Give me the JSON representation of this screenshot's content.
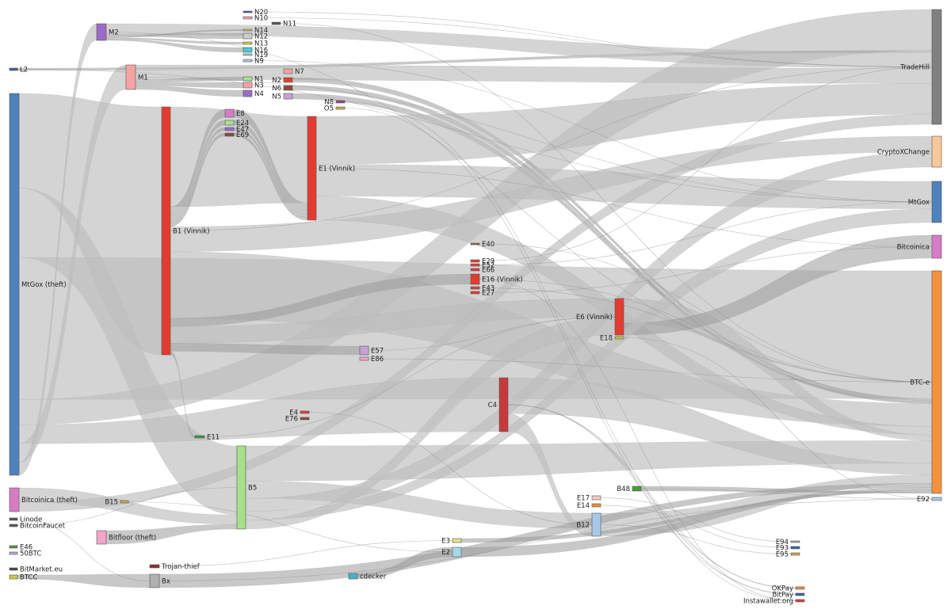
{
  "diagram": {
    "type": "sankey",
    "nodes": [
      {
        "id": "L2",
        "label": "L2",
        "color": "#3a63a3"
      },
      {
        "id": "MtGoxTheft",
        "label": "MtGox (theft)",
        "color": "#4f81bd"
      },
      {
        "id": "BitcoinicaTheft",
        "label": "Bitcoinica (theft)",
        "color": "#d77bc7"
      },
      {
        "id": "Linode",
        "label": "Linode",
        "color": "#555555"
      },
      {
        "id": "BitcoinFaucet",
        "label": "BitcoinFaucet",
        "color": "#555555"
      },
      {
        "id": "E46",
        "label": "E46",
        "color": "#4a9a3a"
      },
      {
        "id": "50BTC",
        "label": "50BTC",
        "color": "#c7a0d8"
      },
      {
        "id": "BitMarket",
        "label": "BitMarket.eu",
        "color": "#444444"
      },
      {
        "id": "BTCC",
        "label": "BTCC",
        "color": "#c9c94a"
      },
      {
        "id": "M2",
        "label": "M2",
        "color": "#9b6bc6"
      },
      {
        "id": "M1",
        "label": "M1",
        "color": "#f4a3a3"
      },
      {
        "id": "B15",
        "label": "B15",
        "color": "#c9a84a"
      },
      {
        "id": "BitfloorTheft",
        "label": "Bitfloor (theft)",
        "color": "#f4a3c9"
      },
      {
        "id": "TrojanThief",
        "label": "Trojan-thief",
        "color": "#8b3030"
      },
      {
        "id": "Bx",
        "label": "Bx",
        "color": "#b0b0b0"
      },
      {
        "id": "B1",
        "label": "B1 (Vinnik)",
        "color": "#e23c30"
      },
      {
        "id": "E11",
        "label": "E11",
        "color": "#3a9a3a"
      },
      {
        "id": "E8",
        "label": "E8",
        "color": "#d77bc7"
      },
      {
        "id": "E24",
        "label": "E24",
        "color": "#a8e08a"
      },
      {
        "id": "E47",
        "label": "E47",
        "color": "#9b6bc6"
      },
      {
        "id": "E69",
        "label": "E69",
        "color": "#8b4a3a"
      },
      {
        "id": "B5",
        "label": "B5",
        "color": "#a8e08a"
      },
      {
        "id": "N20",
        "label": "N20",
        "color": "#3a63a3"
      },
      {
        "id": "N10",
        "label": "N10",
        "color": "#f4a3a3"
      },
      {
        "id": "N14",
        "label": "N14",
        "color": "#c9c94a"
      },
      {
        "id": "N12",
        "label": "N12",
        "color": "#cccccc"
      },
      {
        "id": "N13",
        "label": "N13",
        "color": "#c9c94a"
      },
      {
        "id": "N16",
        "label": "N16",
        "color": "#4ac9d8"
      },
      {
        "id": "N19",
        "label": "N19",
        "color": "#a8c8e8"
      },
      {
        "id": "N9",
        "label": "N9",
        "color": "#a8c8e8"
      },
      {
        "id": "N1",
        "label": "N1",
        "color": "#a8e08a"
      },
      {
        "id": "N3",
        "label": "N3",
        "color": "#f4a3a3"
      },
      {
        "id": "N4",
        "label": "N4",
        "color": "#9b6bc6"
      },
      {
        "id": "N11",
        "label": "N11",
        "color": "#555555"
      },
      {
        "id": "N7",
        "label": "N7",
        "color": "#f4a3a3"
      },
      {
        "id": "N2",
        "label": "N2",
        "color": "#e23c30"
      },
      {
        "id": "N6",
        "label": "N6",
        "color": "#8b4a3a"
      },
      {
        "id": "N5",
        "label": "N5",
        "color": "#c7a0d8"
      },
      {
        "id": "N8",
        "label": "N8",
        "color": "#9b3a9b"
      },
      {
        "id": "O5",
        "label": "O5",
        "color": "#c9a84a"
      },
      {
        "id": "E1",
        "label": "E1 (Vinnik)",
        "color": "#e23c30"
      },
      {
        "id": "E4",
        "label": "E4",
        "color": "#e23c30"
      },
      {
        "id": "E76",
        "label": "E76",
        "color": "#8b4a3a"
      },
      {
        "id": "E57",
        "label": "E57",
        "color": "#c7a0d8"
      },
      {
        "id": "E86",
        "label": "E86",
        "color": "#f4a3c9"
      },
      {
        "id": "cdecker",
        "label": "cdecker",
        "color": "#4ab0c9"
      },
      {
        "id": "E40",
        "label": "E40",
        "color": "#8b6a4a"
      },
      {
        "id": "E29",
        "label": "E29",
        "color": "#e23c30"
      },
      {
        "id": "E52",
        "label": "E52",
        "color": "#e23c30"
      },
      {
        "id": "E66",
        "label": "E66",
        "color": "#e23c30"
      },
      {
        "id": "E16",
        "label": "E16 (Vinnik)",
        "color": "#e23c30"
      },
      {
        "id": "E43",
        "label": "E43",
        "color": "#e23c30"
      },
      {
        "id": "E27",
        "label": "E27",
        "color": "#e23c30"
      },
      {
        "id": "C4",
        "label": "C4",
        "color": "#c73a3a"
      },
      {
        "id": "E3",
        "label": "E3",
        "color": "#e8e08a"
      },
      {
        "id": "E2",
        "label": "E2",
        "color": "#a8d8e8"
      },
      {
        "id": "E6",
        "label": "E6 (Vinnik)",
        "color": "#e23c30"
      },
      {
        "id": "E18",
        "label": "E18",
        "color": "#c9c94a"
      },
      {
        "id": "B48",
        "label": "B48",
        "color": "#4a9a3a"
      },
      {
        "id": "E17",
        "label": "E17",
        "color": "#f4c8c8"
      },
      {
        "id": "E14",
        "label": "E14",
        "color": "#e8903a"
      },
      {
        "id": "B12",
        "label": "B12",
        "color": "#a8c8e8"
      },
      {
        "id": "E94",
        "label": "E94",
        "color": "#aaaaaa"
      },
      {
        "id": "E93",
        "label": "E93",
        "color": "#3a63a3"
      },
      {
        "id": "E95",
        "label": "E95",
        "color": "#c9a84a"
      },
      {
        "id": "OKPay",
        "label": "OKPay",
        "color": "#e8903a"
      },
      {
        "id": "BitPay",
        "label": "BitPay",
        "color": "#3a63a3"
      },
      {
        "id": "Instawallet",
        "label": "Instawallet.org",
        "color": "#e23c30"
      },
      {
        "id": "TradeHill",
        "label": "TradeHill",
        "color": "#808080"
      },
      {
        "id": "CryptoXChange",
        "label": "CryptoXChange",
        "color": "#f8c89a"
      },
      {
        "id": "MtGox",
        "label": "MtGox",
        "color": "#4f81bd"
      },
      {
        "id": "Bitcoinica",
        "label": "Bitcoinica",
        "color": "#d77bc7"
      },
      {
        "id": "BTCe",
        "label": "BTC-e",
        "color": "#f4923a"
      },
      {
        "id": "E92",
        "label": "E92",
        "color": "#a8c8e8"
      }
    ],
    "links": [
      {
        "source": "MtGoxTheft",
        "target": "B1",
        "value": 30
      },
      {
        "source": "MtGoxTheft",
        "target": "B5",
        "value": 22
      },
      {
        "source": "MtGoxTheft",
        "target": "BTCe",
        "value": 45
      },
      {
        "source": "MtGoxTheft",
        "target": "TradeHill",
        "value": 8
      },
      {
        "source": "MtGoxTheft",
        "target": "C4",
        "value": 6
      },
      {
        "source": "MtGoxTheft",
        "target": "M1",
        "value": 6
      },
      {
        "source": "MtGoxTheft",
        "target": "M2",
        "value": 4
      },
      {
        "source": "L2",
        "target": "TradeHill",
        "value": 0.5
      },
      {
        "source": "M2",
        "target": "TradeHill",
        "value": 3
      },
      {
        "source": "M2",
        "target": "N12",
        "value": 0.6
      },
      {
        "source": "M2",
        "target": "N14",
        "value": 0.4
      },
      {
        "source": "M2",
        "target": "N13",
        "value": 0.4
      },
      {
        "source": "M2",
        "target": "N16",
        "value": 0.4
      },
      {
        "source": "M1",
        "target": "TradeHill",
        "value": 3
      },
      {
        "source": "M1",
        "target": "N1",
        "value": 0.6
      },
      {
        "source": "M1",
        "target": "N3",
        "value": 0.6
      },
      {
        "source": "M1",
        "target": "N4",
        "value": 0.8
      },
      {
        "source": "N2",
        "target": "BTCe",
        "value": 0.6
      },
      {
        "source": "N5",
        "target": "BTCe",
        "value": 0.6
      },
      {
        "source": "N6",
        "target": "BTCe",
        "value": 0.6
      },
      {
        "source": "B1",
        "target": "E1",
        "value": 12
      },
      {
        "source": "B1",
        "target": "E8",
        "value": 1
      },
      {
        "source": "B1",
        "target": "E24",
        "value": 0.6
      },
      {
        "source": "B1",
        "target": "E47",
        "value": 0.4
      },
      {
        "source": "B1",
        "target": "E69",
        "value": 0.4
      },
      {
        "source": "E8",
        "target": "E1",
        "value": 1
      },
      {
        "source": "E24",
        "target": "E1",
        "value": 0.6
      },
      {
        "source": "E47",
        "target": "E1",
        "value": 0.4
      },
      {
        "source": "E69",
        "target": "E1",
        "value": 0.4
      },
      {
        "source": "B1",
        "target": "CryptoXChange",
        "value": 3
      },
      {
        "source": "B1",
        "target": "BTCe",
        "value": 8
      },
      {
        "source": "B1",
        "target": "E16",
        "value": 1
      },
      {
        "source": "B1",
        "target": "E6",
        "value": 2
      },
      {
        "source": "B1",
        "target": "E57",
        "value": 1
      },
      {
        "source": "B1",
        "target": "E11",
        "value": 0.4
      },
      {
        "source": "E1",
        "target": "TradeHill",
        "value": 6
      },
      {
        "source": "E1",
        "target": "MtGox",
        "value": 4
      },
      {
        "source": "E1",
        "target": "BTCe",
        "value": 3
      },
      {
        "source": "E6",
        "target": "BTCe",
        "value": 2
      },
      {
        "source": "E6",
        "target": "Bitcoinica",
        "value": 1
      },
      {
        "source": "BitcoinicaTheft",
        "target": "B5",
        "value": 3
      },
      {
        "source": "BitcoinicaTheft",
        "target": "TradeHill",
        "value": 2
      },
      {
        "source": "BitfloorTheft",
        "target": "B5",
        "value": 1.5
      },
      {
        "source": "B5",
        "target": "BTCe",
        "value": 8
      },
      {
        "source": "B5",
        "target": "B12",
        "value": 4
      },
      {
        "source": "B5",
        "target": "CryptoXChange",
        "value": 3
      },
      {
        "source": "B5",
        "target": "MtGox",
        "value": 2
      },
      {
        "source": "B5",
        "target": "E6",
        "value": 2
      },
      {
        "source": "C4",
        "target": "BTCe",
        "value": 4
      },
      {
        "source": "C4",
        "target": "B12",
        "value": 2
      },
      {
        "source": "B12",
        "target": "BTCe",
        "value": 3
      },
      {
        "source": "Bx",
        "target": "BTCe",
        "value": 1.5
      },
      {
        "source": "BTCC",
        "target": "Bx",
        "value": 1
      },
      {
        "source": "cdecker",
        "target": "E2",
        "value": 1
      },
      {
        "source": "E2",
        "target": "BTCe",
        "value": 1
      },
      {
        "source": "E3",
        "target": "BTCe",
        "value": 0.6
      },
      {
        "source": "B48",
        "target": "BTCe",
        "value": 0.5
      }
    ]
  }
}
